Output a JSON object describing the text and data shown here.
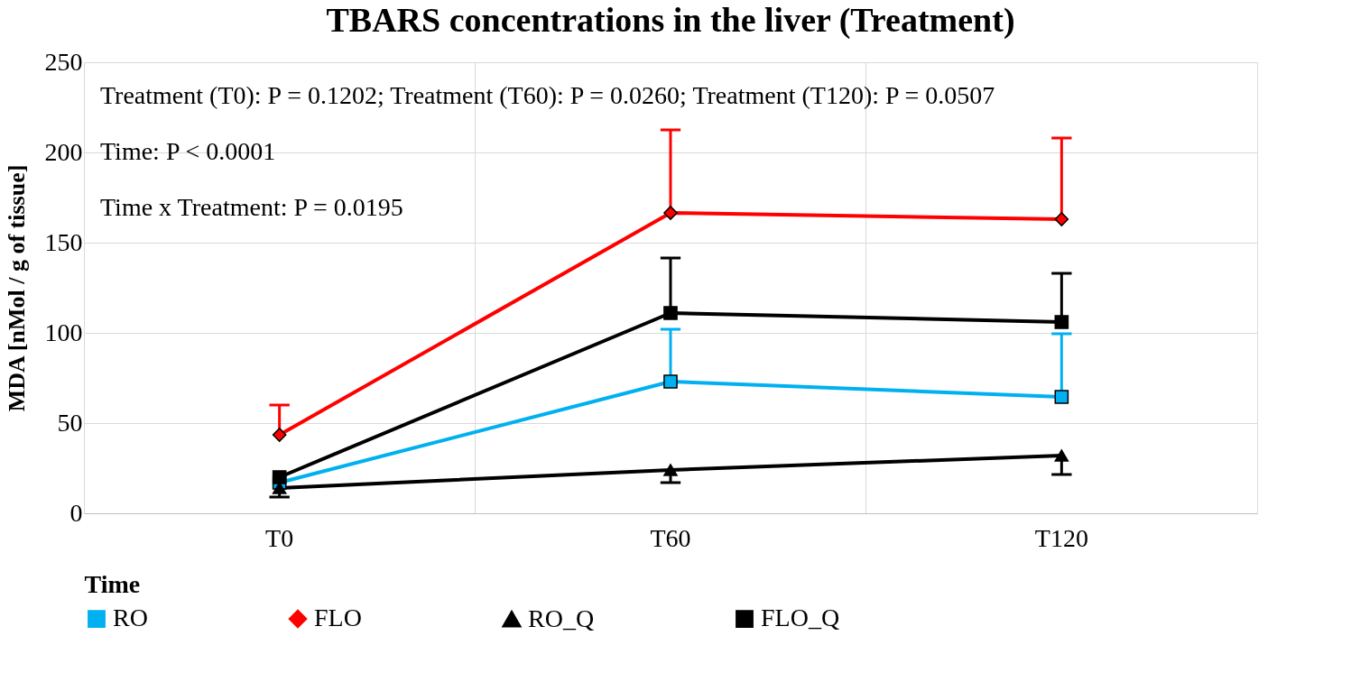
{
  "chart_data": {
    "type": "line",
    "title": "TBARS concentrations in the liver (Treatment)",
    "xlabel": "Time",
    "ylabel": "MDA [nMol / g of tissue]",
    "categories": [
      "T0",
      "T60",
      "T120"
    ],
    "series": [
      {
        "name": "RO",
        "color": "#00b0f0",
        "marker": "square",
        "values": [
          17,
          73,
          64.5
        ],
        "errors": [
          null,
          [
            73,
            102
          ],
          [
            64.5,
            99.5
          ]
        ]
      },
      {
        "name": "FLO",
        "color": "#ff0000",
        "marker": "diamond",
        "values": [
          43.5,
          166.5,
          163
        ],
        "errors": [
          [
            43.5,
            60
          ],
          [
            166.5,
            212.5
          ],
          [
            163,
            208
          ]
        ]
      },
      {
        "name": "RO_Q",
        "color": "#000000",
        "marker": "triangle",
        "values": [
          14,
          24,
          32
        ],
        "errors": [
          [
            9,
            14
          ],
          [
            17,
            24
          ],
          [
            21.5,
            32
          ]
        ]
      },
      {
        "name": "FLO_Q",
        "color": "#000000",
        "marker": "square",
        "values": [
          20,
          111,
          106
        ],
        "errors": [
          null,
          [
            111,
            141.5
          ],
          [
            106,
            133
          ]
        ]
      }
    ],
    "ylim": [
      0,
      250
    ],
    "yticks": [
      0,
      50,
      100,
      150,
      200,
      250
    ],
    "grid": true,
    "legend": "bottom",
    "line_style": "solid",
    "annotations": [
      "Treatment (T0): P = 0.1202; Treatment (T60): P = 0.0260; Treatment (T120): P = 0.0507",
      "Time: P < 0.0001",
      "Time x Treatment: P = 0.0195"
    ]
  }
}
